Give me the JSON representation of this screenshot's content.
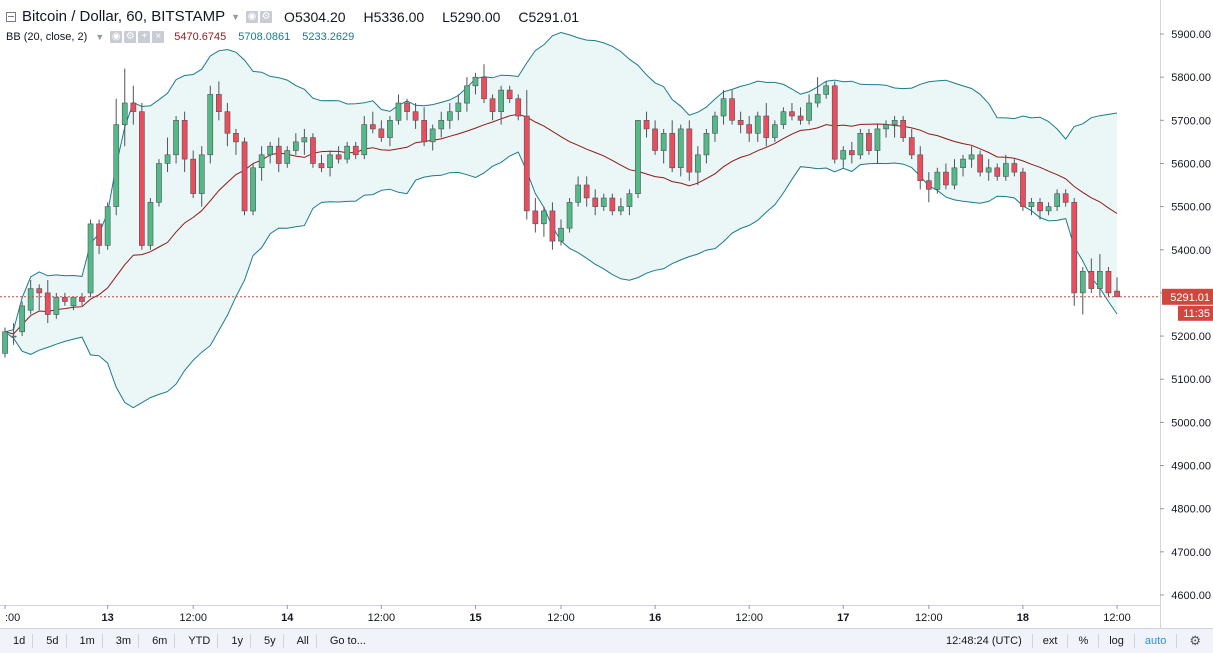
{
  "header": {
    "symbol_title": "Bitcoin / Dollar, 60, BITSTAMP",
    "ohlc": [
      {
        "key": "O",
        "value": "5304.20"
      },
      {
        "key": "H",
        "value": "5336.00"
      },
      {
        "key": "L",
        "value": "5290.00"
      },
      {
        "key": "C",
        "value": "5291.01"
      }
    ]
  },
  "indicator": {
    "name": "BB (20, close, 2)",
    "values": [
      "5470.6745",
      "5708.0861",
      "5233.2629"
    ],
    "colors": [
      "#8d1a1a",
      "#1b7b8a",
      "#1b7b8a"
    ]
  },
  "price_axis": {
    "labels": [
      "5900.00",
      "5800.00",
      "5700.00",
      "5600.00",
      "5500.00",
      "5400.00",
      "5300.00",
      "5200.00",
      "5100.00",
      "5000.00",
      "4900.00",
      "4800.00",
      "4700.00",
      "4600.00"
    ],
    "last_price": "5291.01",
    "countdown": "11:35"
  },
  "time_axis": {
    "labels": [
      ":00",
      "13",
      "12:00",
      "14",
      "12:00",
      "15",
      "12:00",
      "16",
      "12:00",
      "17",
      "12:00",
      "18",
      "12:00"
    ]
  },
  "bottom_toolbar": {
    "timeframes": [
      "1d",
      "5d",
      "1m",
      "3m",
      "6m",
      "YTD",
      "1y",
      "5y",
      "All",
      "Go to..."
    ],
    "clock": "12:48:24 (UTC)",
    "toggles": [
      "ext",
      "%",
      "log",
      "auto"
    ],
    "active_toggle": "auto"
  },
  "colors": {
    "up": "#53b987",
    "down": "#eb4d5c",
    "basis": "#8d1a1a",
    "band": "#1b7b8a",
    "band_fill": "#e7f5f5",
    "last_price_tag": "#d0473e"
  },
  "chart_data": {
    "type": "candlestick",
    "title": "Bitcoin / Dollar, 60, BITSTAMP",
    "ylim": [
      4580,
      5960
    ],
    "x_unit": "hourly bars",
    "candles": [
      [
        5160,
        5220,
        5150,
        5210
      ],
      [
        5200,
        5230,
        5180,
        5200
      ],
      [
        5210,
        5280,
        5200,
        5270
      ],
      [
        5260,
        5330,
        5250,
        5310
      ],
      [
        5310,
        5320,
        5260,
        5300
      ],
      [
        5300,
        5330,
        5230,
        5250
      ],
      [
        5250,
        5300,
        5240,
        5290
      ],
      [
        5290,
        5300,
        5270,
        5280
      ],
      [
        5270,
        5290,
        5260,
        5290
      ],
      [
        5290,
        5300,
        5270,
        5280
      ],
      [
        5300,
        5470,
        5290,
        5460
      ],
      [
        5460,
        5470,
        5390,
        5410
      ],
      [
        5410,
        5510,
        5400,
        5500
      ],
      [
        5500,
        5750,
        5480,
        5690
      ],
      [
        5690,
        5820,
        5640,
        5740
      ],
      [
        5740,
        5780,
        5690,
        5720
      ],
      [
        5720,
        5740,
        5400,
        5410
      ],
      [
        5410,
        5520,
        5400,
        5510
      ],
      [
        5510,
        5610,
        5500,
        5600
      ],
      [
        5600,
        5660,
        5580,
        5620
      ],
      [
        5620,
        5710,
        5600,
        5700
      ],
      [
        5700,
        5720,
        5580,
        5610
      ],
      [
        5610,
        5630,
        5520,
        5530
      ],
      [
        5530,
        5640,
        5500,
        5620
      ],
      [
        5620,
        5780,
        5600,
        5760
      ],
      [
        5760,
        5790,
        5700,
        5720
      ],
      [
        5720,
        5740,
        5640,
        5670
      ],
      [
        5670,
        5680,
        5620,
        5650
      ],
      [
        5650,
        5660,
        5480,
        5490
      ],
      [
        5490,
        5600,
        5480,
        5590
      ],
      [
        5590,
        5640,
        5560,
        5620
      ],
      [
        5620,
        5650,
        5600,
        5640
      ],
      [
        5640,
        5660,
        5580,
        5600
      ],
      [
        5600,
        5640,
        5590,
        5630
      ],
      [
        5630,
        5670,
        5620,
        5650
      ],
      [
        5650,
        5680,
        5620,
        5660
      ],
      [
        5660,
        5670,
        5590,
        5600
      ],
      [
        5600,
        5620,
        5580,
        5590
      ],
      [
        5590,
        5630,
        5570,
        5620
      ],
      [
        5620,
        5640,
        5600,
        5610
      ],
      [
        5610,
        5650,
        5600,
        5640
      ],
      [
        5640,
        5650,
        5610,
        5620
      ],
      [
        5620,
        5710,
        5610,
        5690
      ],
      [
        5690,
        5720,
        5670,
        5680
      ],
      [
        5680,
        5700,
        5650,
        5660
      ],
      [
        5660,
        5710,
        5640,
        5700
      ],
      [
        5700,
        5760,
        5690,
        5740
      ],
      [
        5740,
        5750,
        5700,
        5720
      ],
      [
        5720,
        5740,
        5680,
        5700
      ],
      [
        5700,
        5730,
        5640,
        5650
      ],
      [
        5650,
        5690,
        5630,
        5680
      ],
      [
        5680,
        5720,
        5660,
        5700
      ],
      [
        5700,
        5740,
        5680,
        5720
      ],
      [
        5720,
        5760,
        5700,
        5740
      ],
      [
        5740,
        5800,
        5720,
        5780
      ],
      [
        5780,
        5810,
        5760,
        5800
      ],
      [
        5800,
        5830,
        5740,
        5750
      ],
      [
        5750,
        5760,
        5700,
        5720
      ],
      [
        5720,
        5780,
        5690,
        5770
      ],
      [
        5770,
        5780,
        5740,
        5750
      ],
      [
        5750,
        5760,
        5700,
        5710
      ],
      [
        5710,
        5770,
        5470,
        5490
      ],
      [
        5490,
        5520,
        5440,
        5460
      ],
      [
        5460,
        5500,
        5430,
        5490
      ],
      [
        5490,
        5510,
        5400,
        5420
      ],
      [
        5420,
        5470,
        5410,
        5450
      ],
      [
        5450,
        5520,
        5440,
        5510
      ],
      [
        5510,
        5570,
        5500,
        5550
      ],
      [
        5550,
        5570,
        5500,
        5520
      ],
      [
        5520,
        5540,
        5480,
        5500
      ],
      [
        5500,
        5530,
        5490,
        5520
      ],
      [
        5520,
        5530,
        5480,
        5490
      ],
      [
        5490,
        5520,
        5480,
        5500
      ],
      [
        5500,
        5540,
        5480,
        5530
      ],
      [
        5530,
        5700,
        5520,
        5700
      ],
      [
        5700,
        5720,
        5660,
        5680
      ],
      [
        5680,
        5700,
        5620,
        5630
      ],
      [
        5630,
        5680,
        5600,
        5670
      ],
      [
        5670,
        5700,
        5580,
        5590
      ],
      [
        5590,
        5690,
        5570,
        5680
      ],
      [
        5680,
        5700,
        5560,
        5580
      ],
      [
        5580,
        5640,
        5550,
        5620
      ],
      [
        5620,
        5680,
        5600,
        5670
      ],
      [
        5670,
        5720,
        5650,
        5710
      ],
      [
        5710,
        5770,
        5690,
        5750
      ],
      [
        5750,
        5770,
        5690,
        5700
      ],
      [
        5700,
        5720,
        5670,
        5690
      ],
      [
        5690,
        5710,
        5650,
        5670
      ],
      [
        5670,
        5720,
        5650,
        5710
      ],
      [
        5710,
        5740,
        5640,
        5660
      ],
      [
        5660,
        5700,
        5650,
        5690
      ],
      [
        5690,
        5730,
        5680,
        5720
      ],
      [
        5720,
        5740,
        5700,
        5710
      ],
      [
        5710,
        5730,
        5690,
        5700
      ],
      [
        5700,
        5760,
        5690,
        5740
      ],
      [
        5740,
        5800,
        5730,
        5760
      ],
      [
        5760,
        5790,
        5750,
        5780
      ],
      [
        5780,
        5790,
        5600,
        5610
      ],
      [
        5610,
        5640,
        5590,
        5630
      ],
      [
        5630,
        5650,
        5600,
        5620
      ],
      [
        5620,
        5680,
        5610,
        5670
      ],
      [
        5670,
        5680,
        5620,
        5630
      ],
      [
        5630,
        5690,
        5600,
        5680
      ],
      [
        5680,
        5700,
        5660,
        5690
      ],
      [
        5690,
        5710,
        5660,
        5700
      ],
      [
        5700,
        5710,
        5650,
        5660
      ],
      [
        5660,
        5680,
        5610,
        5620
      ],
      [
        5620,
        5640,
        5540,
        5560
      ],
      [
        5560,
        5580,
        5510,
        5540
      ],
      [
        5540,
        5590,
        5530,
        5580
      ],
      [
        5580,
        5600,
        5540,
        5550
      ],
      [
        5550,
        5610,
        5540,
        5590
      ],
      [
        5590,
        5620,
        5570,
        5610
      ],
      [
        5610,
        5640,
        5590,
        5620
      ],
      [
        5620,
        5630,
        5570,
        5580
      ],
      [
        5580,
        5610,
        5560,
        5590
      ],
      [
        5590,
        5600,
        5560,
        5570
      ],
      [
        5570,
        5620,
        5560,
        5600
      ],
      [
        5600,
        5610,
        5570,
        5580
      ],
      [
        5580,
        5590,
        5490,
        5500
      ],
      [
        5500,
        5520,
        5480,
        5510
      ],
      [
        5510,
        5520,
        5470,
        5490
      ],
      [
        5490,
        5510,
        5480,
        5500
      ],
      [
        5500,
        5540,
        5490,
        5530
      ],
      [
        5530,
        5540,
        5500,
        5510
      ],
      [
        5510,
        5520,
        5270,
        5300
      ],
      [
        5300,
        5360,
        5250,
        5350
      ],
      [
        5350,
        5380,
        5300,
        5310
      ],
      [
        5310,
        5390,
        5290,
        5350
      ],
      [
        5350,
        5360,
        5290,
        5300
      ],
      [
        5304.2,
        5336,
        5290,
        5291.01
      ]
    ]
  }
}
